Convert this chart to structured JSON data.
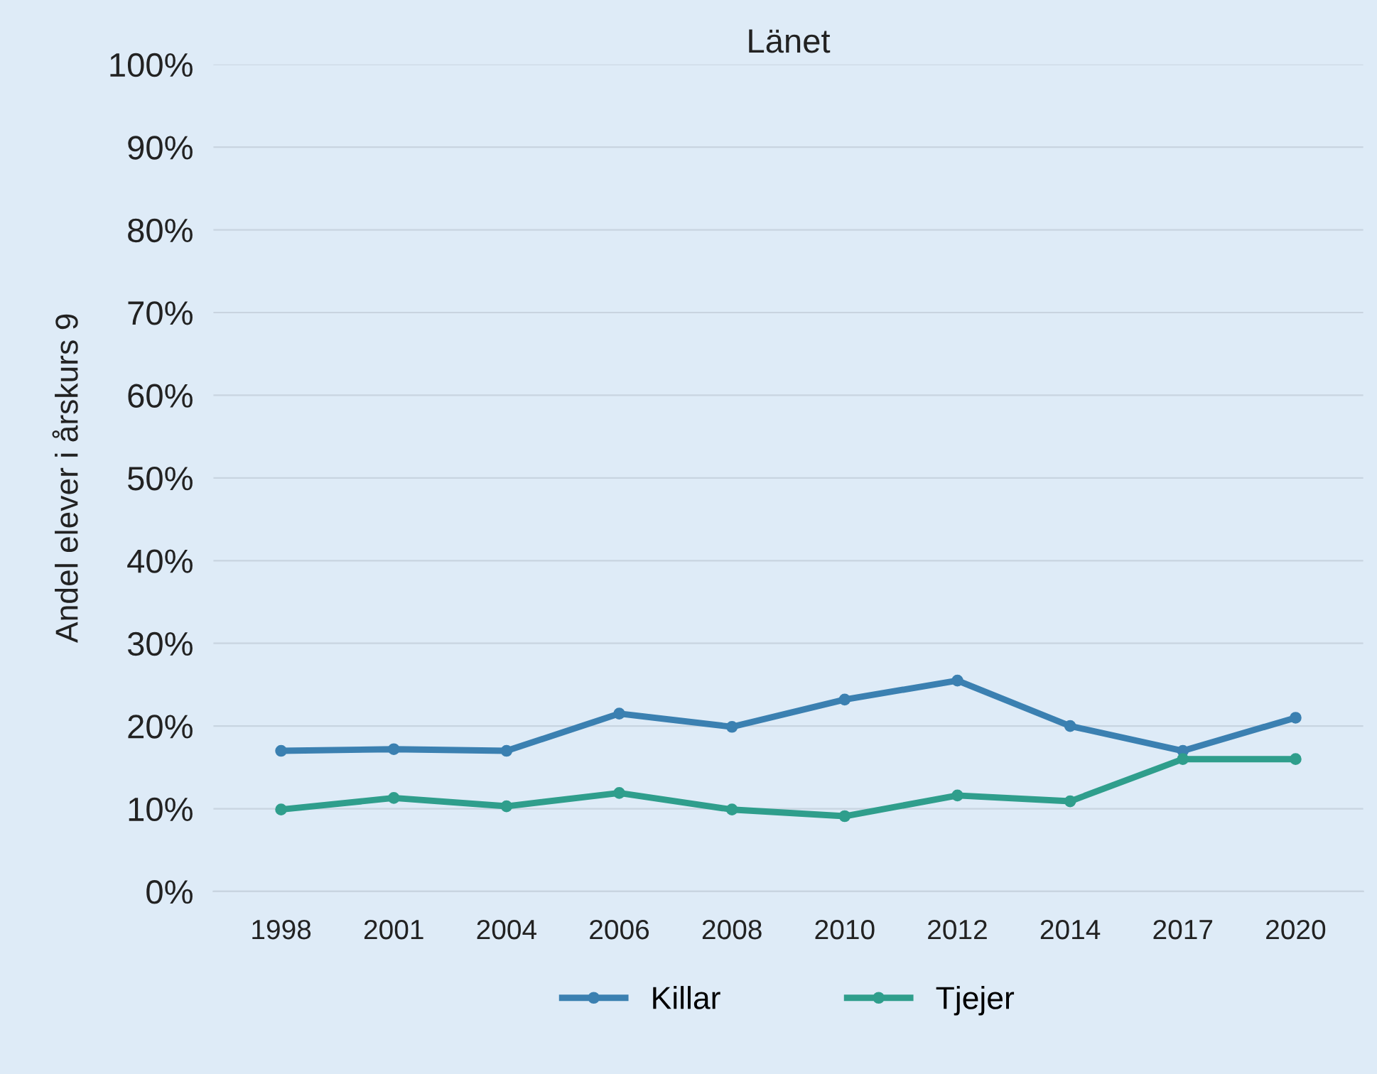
{
  "chart_data": {
    "type": "line",
    "title": "Länet",
    "ylabel": "Andel elever i årskurs 9",
    "categories": [
      "1998",
      "2001",
      "2004",
      "2006",
      "2008",
      "2010",
      "2012",
      "2014",
      "2017",
      "2020"
    ],
    "series": [
      {
        "name": "Killar",
        "color": "#3b80b1",
        "values": [
          17,
          17.2,
          17,
          21.5,
          19.9,
          23.2,
          25.5,
          20,
          17,
          21
        ]
      },
      {
        "name": "Tjejer",
        "color": "#2f9e8c",
        "values": [
          9.9,
          11.3,
          10.3,
          11.9,
          9.9,
          9.1,
          11.6,
          10.9,
          16,
          16
        ]
      }
    ],
    "ylim": [
      0,
      100
    ],
    "yticks": [
      {
        "value": 0,
        "label": "0%"
      },
      {
        "value": 10,
        "label": "10%"
      },
      {
        "value": 20,
        "label": "20%"
      },
      {
        "value": 30,
        "label": "30%"
      },
      {
        "value": 40,
        "label": "40%"
      },
      {
        "value": 50,
        "label": "50%"
      },
      {
        "value": 60,
        "label": "60%"
      },
      {
        "value": 70,
        "label": "70%"
      },
      {
        "value": 80,
        "label": "80%"
      },
      {
        "value": 90,
        "label": "90%"
      },
      {
        "value": 100,
        "label": "100%"
      }
    ],
    "grid": "y",
    "legend": "bottom",
    "marker": "circle",
    "line_style": "solid"
  }
}
